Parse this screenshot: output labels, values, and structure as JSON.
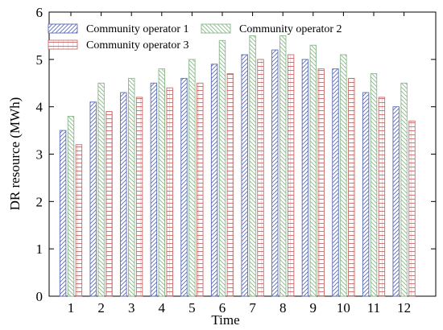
{
  "chart_data": {
    "type": "bar",
    "xlabel": "Time",
    "ylabel": "DR resource (MWh)",
    "ylim": [
      0,
      6
    ],
    "yticks": [
      0,
      1,
      2,
      3,
      4,
      5,
      6
    ],
    "categories": [
      "1",
      "2",
      "3",
      "4",
      "5",
      "6",
      "7",
      "8",
      "9",
      "10",
      "11",
      "12"
    ],
    "grid": false,
    "legend_position": "top-left",
    "series": [
      {
        "name": "Community operator 1",
        "color": "#5b6cb5",
        "pattern": "diagonal-hatch",
        "values": [
          3.5,
          4.1,
          4.3,
          4.5,
          4.6,
          4.9,
          5.1,
          5.2,
          5.0,
          4.8,
          4.3,
          4.0
        ]
      },
      {
        "name": "Community operator 2",
        "color": "#8ab88a",
        "pattern": "diagonal-hatch-reverse",
        "values": [
          3.8,
          4.5,
          4.6,
          4.8,
          5.0,
          5.4,
          5.5,
          5.5,
          5.3,
          5.1,
          4.7,
          4.5
        ]
      },
      {
        "name": "Community operator 3",
        "color": "#c96a6a",
        "pattern": "horizontal-hatch",
        "values": [
          3.2,
          3.9,
          4.2,
          4.4,
          4.5,
          4.7,
          5.0,
          5.1,
          4.8,
          4.6,
          4.2,
          3.7
        ]
      }
    ]
  }
}
